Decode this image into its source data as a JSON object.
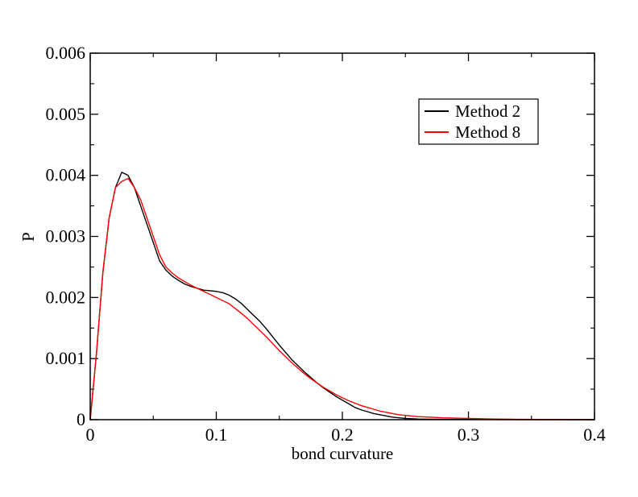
{
  "chart_data": {
    "type": "line",
    "title": "",
    "xlabel": "bond curvature",
    "ylabel": "P",
    "xlim": [
      0,
      0.4
    ],
    "ylim": [
      0,
      0.006
    ],
    "x_ticks": [
      0,
      0.1,
      0.2,
      0.3,
      0.4
    ],
    "x_tick_labels": [
      "0",
      "0.1",
      "0.2",
      "0.3",
      "0.4"
    ],
    "y_ticks": [
      0,
      0.001,
      0.002,
      0.003,
      0.004,
      0.005,
      0.006
    ],
    "y_tick_labels": [
      "0",
      "0.001",
      "0.002",
      "0.003",
      "0.004",
      "0.005",
      "0.006"
    ],
    "grid": false,
    "legend_position": "top-right",
    "series": [
      {
        "name": "Method 2",
        "color": "#000000",
        "x": [
          0,
          0.005,
          0.01,
          0.015,
          0.02,
          0.025,
          0.03,
          0.035,
          0.04,
          0.045,
          0.05,
          0.055,
          0.06,
          0.065,
          0.07,
          0.075,
          0.08,
          0.085,
          0.09,
          0.095,
          0.1,
          0.105,
          0.11,
          0.115,
          0.12,
          0.125,
          0.13,
          0.135,
          0.14,
          0.145,
          0.15,
          0.155,
          0.16,
          0.165,
          0.17,
          0.175,
          0.18,
          0.185,
          0.19,
          0.195,
          0.2,
          0.205,
          0.21,
          0.215,
          0.22,
          0.225,
          0.23,
          0.235,
          0.24,
          0.245,
          0.25,
          0.255,
          0.26,
          0.27,
          0.28,
          0.29,
          0.3,
          0.31,
          0.32,
          0.34,
          0.36,
          0.38,
          0.4
        ],
        "y": [
          0,
          0.0011,
          0.0024,
          0.0033,
          0.0038,
          0.00405,
          0.004,
          0.0038,
          0.0035,
          0.0032,
          0.0029,
          0.0026,
          0.00245,
          0.00235,
          0.00228,
          0.00222,
          0.00218,
          0.00215,
          0.00212,
          0.00211,
          0.0021,
          0.00208,
          0.00204,
          0.00198,
          0.0019,
          0.0018,
          0.0017,
          0.0016,
          0.00148,
          0.00135,
          0.00122,
          0.0011,
          0.00098,
          0.00088,
          0.00078,
          0.00069,
          0.0006,
          0.00052,
          0.00045,
          0.00038,
          0.00032,
          0.00026,
          0.0002,
          0.00016,
          0.00013,
          0.0001,
          8e-05,
          6e-05,
          4e-05,
          3e-05,
          2e-05,
          1.5e-05,
          1e-05,
          8e-06,
          6e-06,
          5e-06,
          4e-06,
          3e-06,
          2e-06,
          1e-06,
          0,
          0,
          0
        ]
      },
      {
        "name": "Method 8",
        "color": "#ff0000",
        "x": [
          0,
          0.005,
          0.01,
          0.015,
          0.02,
          0.025,
          0.03,
          0.035,
          0.04,
          0.045,
          0.05,
          0.055,
          0.06,
          0.065,
          0.07,
          0.075,
          0.08,
          0.085,
          0.09,
          0.095,
          0.1,
          0.105,
          0.11,
          0.115,
          0.12,
          0.125,
          0.13,
          0.135,
          0.14,
          0.145,
          0.15,
          0.155,
          0.16,
          0.165,
          0.17,
          0.175,
          0.18,
          0.185,
          0.19,
          0.195,
          0.2,
          0.205,
          0.21,
          0.215,
          0.22,
          0.225,
          0.23,
          0.235,
          0.24,
          0.245,
          0.25,
          0.255,
          0.26,
          0.27,
          0.28,
          0.29,
          0.3,
          0.31,
          0.32,
          0.34,
          0.36,
          0.38,
          0.4
        ],
        "y": [
          0,
          0.0011,
          0.0024,
          0.0033,
          0.0038,
          0.0039,
          0.00395,
          0.0038,
          0.0036,
          0.0033,
          0.003,
          0.0027,
          0.0025,
          0.0024,
          0.00232,
          0.00226,
          0.0022,
          0.00215,
          0.0021,
          0.00205,
          0.002,
          0.00195,
          0.0019,
          0.00182,
          0.00174,
          0.00165,
          0.00155,
          0.00145,
          0.00135,
          0.00124,
          0.00113,
          0.00103,
          0.00093,
          0.00084,
          0.00075,
          0.00067,
          0.0006,
          0.00053,
          0.00047,
          0.00041,
          0.00036,
          0.00031,
          0.00027,
          0.00023,
          0.0002,
          0.00017,
          0.00014,
          0.00012,
          0.0001,
          8e-05,
          7e-05,
          6e-05,
          5e-05,
          4e-05,
          3e-05,
          2.5e-05,
          2e-05,
          1.5e-05,
          1e-05,
          6e-06,
          4e-06,
          2e-06,
          0
        ]
      }
    ]
  }
}
